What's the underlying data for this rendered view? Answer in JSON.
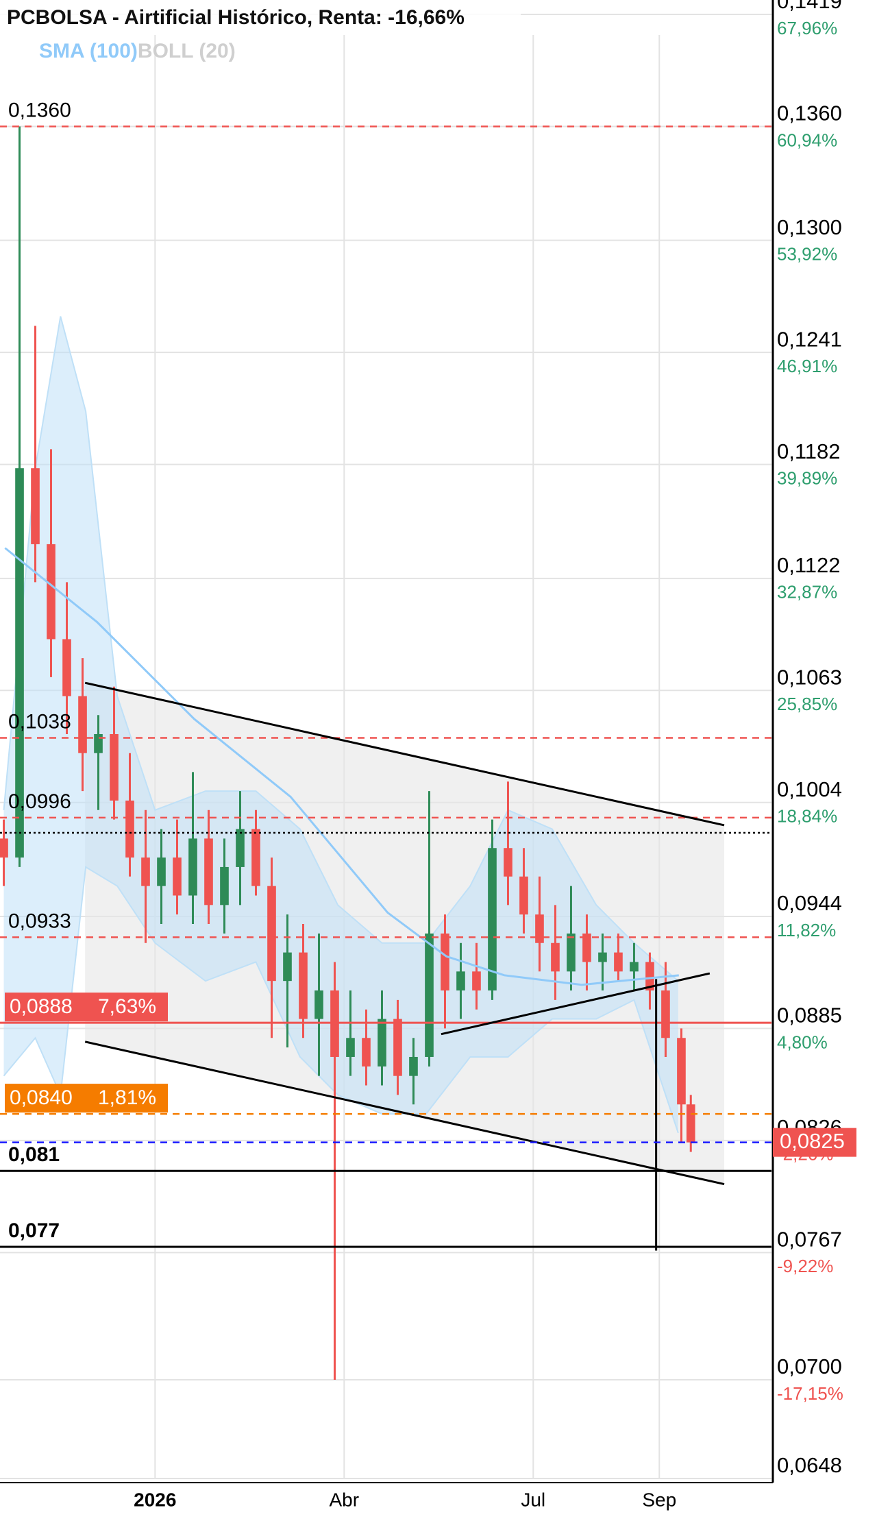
{
  "chart_data": {
    "type": "candlestick",
    "title": "PCBOLSA - Airtificial Histórico, Renta: -16,66%",
    "xlim": [
      -2.46,
      9.78
    ],
    "xticks": [
      {
        "value": 0,
        "label": "2026"
      },
      {
        "value": 3,
        "label": "Abr"
      },
      {
        "value": 6,
        "label": "Jul"
      },
      {
        "value": 8,
        "label": "Sep"
      }
    ],
    "ylim": [
      0.0648,
      0.1419
    ],
    "yticks": [
      {
        "value": 0.1419,
        "label": "0,1419",
        "percent": "67,96%"
      },
      {
        "value": 0.136,
        "label": "0,1360",
        "percent": "60,94%"
      },
      {
        "value": 0.13,
        "label": "0,1300",
        "percent": "53,92%"
      },
      {
        "value": 0.1241,
        "label": "0,1241",
        "percent": "46,91%"
      },
      {
        "value": 0.1182,
        "label": "0,1182",
        "percent": "39,89%"
      },
      {
        "value": 0.1122,
        "label": "0,1122",
        "percent": "32,87%"
      },
      {
        "value": 0.1063,
        "label": "0,1063",
        "percent": "25,85%"
      },
      {
        "value": 0.1004,
        "label": "0,1004",
        "percent": "18,84%"
      },
      {
        "value": 0.0944,
        "label": "0,0944",
        "percent": "11,82%"
      },
      {
        "value": 0.0885,
        "label": "0,0885",
        "percent": "4,80%"
      },
      {
        "value": 0.0826,
        "label": "0,0826",
        "percent": "-2,26%"
      },
      {
        "value": 0.0767,
        "label": "0,0767",
        "percent": "-9,22%"
      },
      {
        "value": 0.07,
        "label": "0,0700",
        "percent": "-17,15%"
      },
      {
        "value": 0.0648,
        "label": "0,0648"
      }
    ],
    "grid": true,
    "up_color": "#2e8b57",
    "down_color": "#ef5350",
    "candles": {
      "x": [
        -2.4,
        -2.15,
        -1.9,
        -1.65,
        -1.4,
        -1.15,
        -0.9,
        -0.65,
        -0.4,
        -0.15,
        0.1,
        0.35,
        0.6,
        0.85,
        1.1,
        1.35,
        1.6,
        1.85,
        2.1,
        2.35,
        2.6,
        2.85,
        3.1,
        3.35,
        3.6,
        3.85,
        4.1,
        4.35,
        4.6,
        4.85,
        5.1,
        5.35,
        5.6,
        5.85,
        6.1,
        6.35,
        6.6,
        6.85,
        7.1,
        7.35,
        7.6,
        7.85,
        8.1,
        8.35,
        8.5
      ],
      "open": [
        0.0985,
        0.0975,
        0.118,
        0.114,
        0.109,
        0.106,
        0.103,
        0.104,
        0.1005,
        0.0975,
        0.096,
        0.0975,
        0.0955,
        0.0985,
        0.095,
        0.097,
        0.099,
        0.096,
        0.091,
        0.0925,
        0.089,
        0.0905,
        0.087,
        0.088,
        0.0865,
        0.089,
        0.086,
        0.087,
        0.0935,
        0.0905,
        0.0915,
        0.0905,
        0.098,
        0.0965,
        0.0945,
        0.093,
        0.0915,
        0.0935,
        0.092,
        0.0925,
        0.0915,
        0.092,
        0.0905,
        0.088,
        0.0845
      ],
      "high": [
        0.0995,
        0.136,
        0.1255,
        0.119,
        0.112,
        0.108,
        0.105,
        0.1065,
        0.103,
        0.1,
        0.099,
        0.0995,
        0.102,
        0.1,
        0.0985,
        0.101,
        0.1,
        0.0975,
        0.0945,
        0.094,
        0.0935,
        0.092,
        0.0905,
        0.0895,
        0.0905,
        0.09,
        0.088,
        0.101,
        0.0945,
        0.093,
        0.093,
        0.0995,
        0.1015,
        0.098,
        0.0965,
        0.095,
        0.096,
        0.0945,
        0.0935,
        0.0935,
        0.093,
        0.0925,
        0.092,
        0.0885,
        0.085
      ],
      "low": [
        0.096,
        0.097,
        0.112,
        0.107,
        0.104,
        0.101,
        0.1,
        0.0995,
        0.0965,
        0.093,
        0.094,
        0.0945,
        0.094,
        0.094,
        0.0935,
        0.095,
        0.0955,
        0.088,
        0.0875,
        0.088,
        0.086,
        0.07,
        0.086,
        0.0855,
        0.0855,
        0.085,
        0.0845,
        0.0865,
        0.0885,
        0.089,
        0.0895,
        0.09,
        0.095,
        0.0935,
        0.0915,
        0.09,
        0.0905,
        0.0905,
        0.0905,
        0.091,
        0.0905,
        0.0895,
        0.087,
        0.0825,
        0.082
      ],
      "close": [
        0.0975,
        0.118,
        0.114,
        0.109,
        0.106,
        0.103,
        0.104,
        0.1005,
        0.0975,
        0.096,
        0.0975,
        0.0955,
        0.0985,
        0.095,
        0.097,
        0.099,
        0.096,
        0.091,
        0.0925,
        0.089,
        0.0905,
        0.087,
        0.088,
        0.0865,
        0.089,
        0.086,
        0.087,
        0.0935,
        0.0905,
        0.0915,
        0.0905,
        0.098,
        0.0965,
        0.0945,
        0.093,
        0.0915,
        0.0935,
        0.092,
        0.0925,
        0.0915,
        0.092,
        0.0905,
        0.088,
        0.0845,
        0.0825
      ]
    },
    "sma": {
      "name": "SMA (100)",
      "color": "#90caf9",
      "x": [
        -2.38,
        -0.92,
        0.62,
        2.15,
        3.69,
        4.62,
        5.54,
        6.77,
        8.31
      ],
      "values": [
        0.1138,
        0.1099,
        0.1048,
        0.1007,
        0.0946,
        0.0923,
        0.0913,
        0.0908,
        0.0913
      ]
    },
    "bollinger": {
      "name": "BOLL (20)",
      "color": "#cfcfcf",
      "fill": "#bfe0f7",
      "x": [
        -2.4,
        -1.9,
        -1.5,
        -1.1,
        -0.6,
        0,
        0.8,
        1.6,
        2.3,
        2.9,
        3.6,
        4.3,
        5.0,
        5.6,
        6.3,
        7.0,
        7.6,
        8.3
      ],
      "upper": [
        0.1,
        0.118,
        0.126,
        0.121,
        0.106,
        0.1,
        0.101,
        0.101,
        0.099,
        0.095,
        0.093,
        0.093,
        0.096,
        0.1,
        0.099,
        0.095,
        0.093,
        0.091
      ],
      "lower": [
        0.086,
        0.088,
        0.085,
        0.097,
        0.096,
        0.093,
        0.091,
        0.092,
        0.087,
        0.085,
        0.084,
        0.084,
        0.087,
        0.087,
        0.089,
        0.089,
        0.09,
        0.083
      ]
    },
    "levels": [
      {
        "value": 0.136,
        "label": "0,1360",
        "color": "#ef5350",
        "style": "dashed"
      },
      {
        "value": 0.1038,
        "label": "0,1038",
        "color": "#ef5350",
        "style": "dashed"
      },
      {
        "value": 0.0996,
        "label": "0,0996",
        "color": "#ef5350",
        "style": "dashed"
      },
      {
        "value": 0.0988,
        "color": "#000000",
        "style": "dotted"
      },
      {
        "value": 0.0933,
        "label": "0,0933",
        "color": "#ef5350",
        "style": "dashed"
      },
      {
        "value": 0.0888,
        "label": "0,0888",
        "percent": "7,63%",
        "color": "#ef5350",
        "style": "solid"
      },
      {
        "value": 0.084,
        "label": "0,0840",
        "percent": "1,81%",
        "color": "#f57c00",
        "style": "dashed"
      },
      {
        "value": 0.081,
        "label": "0,081",
        "color": "#000000",
        "style": "solid"
      },
      {
        "value": 0.077,
        "label": "0,077",
        "color": "#000000",
        "style": "solid"
      }
    ],
    "last_price": {
      "value": 0.0825,
      "label": "0,0825",
      "color": "#ef5350",
      "line_color": "#1a1aff"
    },
    "trendlines": [
      {
        "x": [
          -1.11,
          9.03
        ],
        "y": [
          0.1067,
          0.0992
        ]
      },
      {
        "x": [
          -1.11,
          9.03
        ],
        "y": [
          0.0878,
          0.0803
        ]
      },
      {
        "x": [
          4.54,
          8.8
        ],
        "y": [
          0.0882,
          0.0914
        ]
      },
      {
        "x": [
          7.95,
          7.95
        ],
        "y": [
          0.0911,
          0.0768
        ]
      }
    ]
  }
}
